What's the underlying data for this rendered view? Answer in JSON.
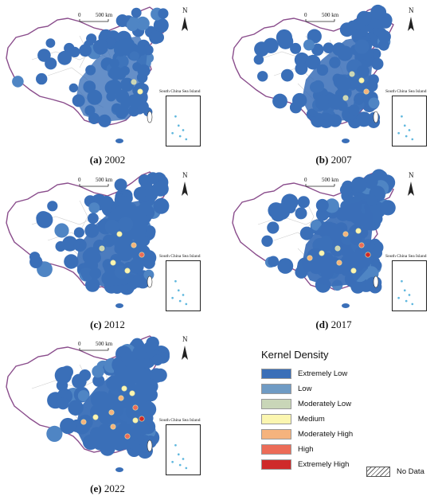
{
  "panels": [
    {
      "caption_letter": "(a)",
      "caption_year": "2002"
    },
    {
      "caption_letter": "(b)",
      "caption_year": "2007"
    },
    {
      "caption_letter": "(c)",
      "caption_year": "2012"
    },
    {
      "caption_letter": "(d)",
      "caption_year": "2017"
    },
    {
      "caption_letter": "(e)",
      "caption_year": "2022"
    }
  ],
  "map_common": {
    "scale_zero": "0",
    "scale_label": "500 km",
    "north_label": "N",
    "inset_title": "South China Sea Island"
  },
  "legend": {
    "title": "Kernel Density",
    "items": [
      {
        "label": "Extremely Low",
        "color": "#3a6fb8"
      },
      {
        "label": "Low",
        "color": "#6f9bc4"
      },
      {
        "label": "Moderately Low",
        "color": "#c9d6b8"
      },
      {
        "label": "Medium",
        "color": "#fbf6b0"
      },
      {
        "label": "Moderately High",
        "color": "#f5b37d"
      },
      {
        "label": "High",
        "color": "#ec6c58"
      },
      {
        "label": "Extremely High",
        "color": "#cf2a2a"
      }
    ],
    "no_data_label": "No Data"
  }
}
